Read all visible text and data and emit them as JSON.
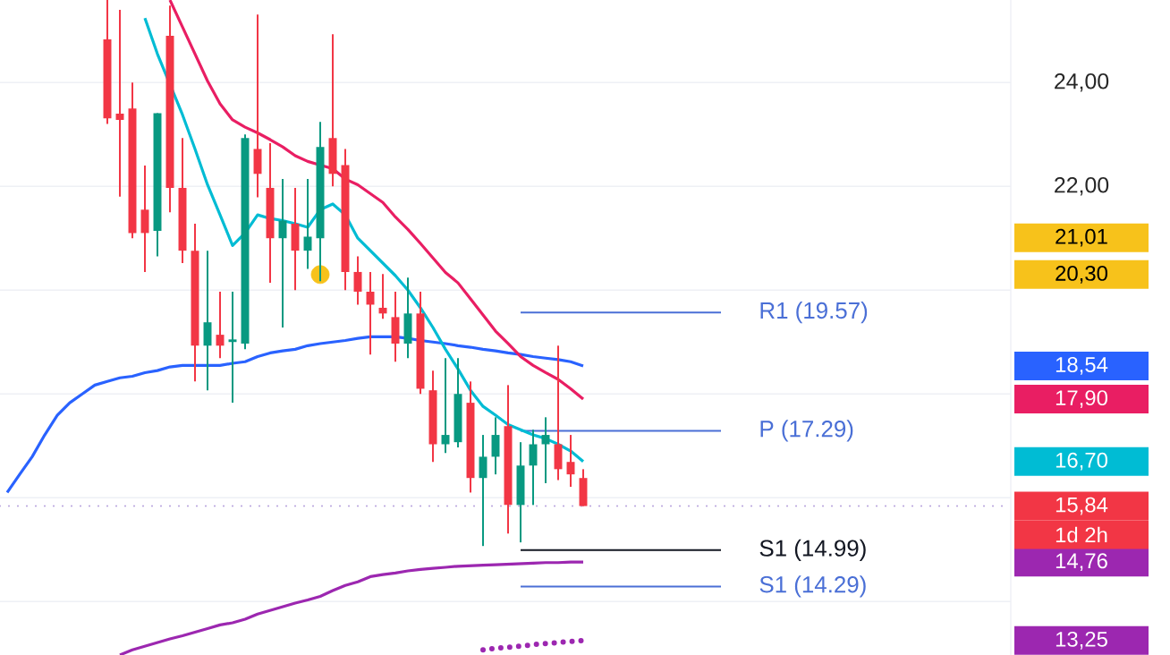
{
  "chart_data": {
    "type": "candlestick",
    "categories": [
      null,
      null,
      null,
      null,
      null,
      null,
      null,
      null,
      null,
      null,
      null,
      null,
      null,
      null,
      null,
      null,
      null,
      null,
      null,
      null,
      null,
      null,
      null,
      null,
      null,
      null,
      null,
      null,
      null,
      null,
      null,
      null,
      null,
      null,
      null,
      null,
      null,
      null,
      null,
      null,
      null,
      null,
      null,
      null,
      null,
      null,
      null,
      null
    ],
    "ohlc": [
      null,
      null,
      null,
      null,
      null,
      null,
      null,
      null,
      null,
      [
        24.83,
        25.59,
        23.2,
        23.31
      ],
      [
        23.4,
        25.4,
        21.8,
        23.28
      ],
      [
        23.5,
        24.0,
        21.0,
        21.1
      ],
      [
        21.55,
        22.4,
        20.35,
        21.1
      ],
      [
        21.14,
        23.41,
        20.65,
        23.41
      ],
      [
        24.9,
        25.48,
        21.5,
        21.97
      ],
      [
        21.97,
        22.93,
        20.52,
        20.76
      ],
      [
        20.76,
        21.28,
        18.24,
        18.93
      ],
      [
        18.93,
        20.76,
        18.07,
        19.38
      ],
      [
        19.14,
        19.97,
        18.69,
        18.93
      ],
      [
        19.0,
        19.97,
        17.83,
        19.05
      ],
      [
        18.97,
        23.0,
        18.86,
        22.93
      ],
      [
        22.72,
        25.31,
        21.79,
        22.24
      ],
      [
        21.97,
        22.83,
        20.14,
        21.0
      ],
      [
        21.0,
        22.14,
        19.28,
        21.34
      ],
      [
        21.28,
        21.97,
        20.0,
        20.76
      ],
      [
        20.76,
        22.14,
        20.41,
        21.03
      ],
      [
        21.0,
        23.24,
        20.17,
        22.76
      ],
      [
        22.93,
        24.93,
        22.0,
        22.24
      ],
      [
        22.41,
        22.72,
        20.0,
        20.35
      ],
      [
        20.35,
        20.65,
        19.72,
        19.97
      ],
      [
        19.97,
        20.35,
        18.76,
        19.72
      ],
      [
        19.66,
        20.31,
        19.45,
        19.55
      ],
      [
        19.48,
        19.97,
        18.62,
        18.97
      ],
      [
        18.97,
        20.24,
        18.69,
        19.55
      ],
      [
        19.55,
        19.97,
        18.0,
        18.1
      ],
      [
        18.07,
        18.45,
        16.69,
        17.03
      ],
      [
        17.03,
        18.69,
        16.86,
        17.21
      ],
      [
        17.07,
        18.69,
        16.97,
        18.0
      ],
      [
        17.83,
        18.24,
        16.1,
        16.38
      ],
      [
        16.38,
        17.21,
        15.07,
        16.79
      ],
      [
        16.79,
        17.55,
        16.45,
        17.21
      ],
      [
        17.38,
        18.17,
        15.31,
        15.86
      ],
      [
        15.86,
        17.07,
        15.14,
        16.62
      ],
      [
        16.62,
        17.31,
        15.86,
        17.03
      ],
      [
        17.03,
        17.55,
        16.28,
        17.21
      ],
      [
        17.03,
        18.93,
        16.34,
        16.55
      ],
      [
        16.69,
        17.21,
        16.21,
        16.45
      ],
      [
        16.38,
        16.55,
        15.84,
        15.84
      ]
    ],
    "colors": [
      null,
      null,
      null,
      null,
      null,
      null,
      null,
      null,
      null,
      "#f23645",
      "#f23645",
      "#f23645",
      "#f23645",
      "#089981",
      "#f23645",
      "#f23645",
      "#f23645",
      "#089981",
      "#f23645",
      "#089981",
      "#089981",
      "#f23645",
      "#f23645",
      "#089981",
      "#f23645",
      "#089981",
      "#089981",
      "#f23645",
      "#f23645",
      "#f23645",
      "#f23645",
      "#f23645",
      "#f23645",
      "#089981",
      "#f23645",
      "#f23645",
      "#089981",
      "#089981",
      "#f23645",
      "#089981",
      "#089981",
      "#f23645",
      "#089981",
      "#089981",
      "#089981",
      "#f23645",
      "#f23645",
      "#f23645"
    ],
    "series": [
      {
        "type": "line",
        "color": "#2962ff",
        "values": [
          null,
          16.1,
          16.45,
          16.79,
          17.21,
          17.59,
          17.83,
          18.0,
          18.17,
          18.24,
          18.31,
          18.34,
          18.41,
          18.45,
          18.52,
          18.55,
          18.55,
          18.55,
          18.55,
          18.59,
          18.62,
          18.72,
          18.79,
          18.83,
          18.86,
          18.93,
          18.97,
          19.0,
          19.03,
          19.07,
          19.1,
          19.1,
          19.1,
          19.07,
          19.03,
          19.0,
          18.97,
          18.93,
          18.9,
          18.86,
          18.83,
          18.79,
          18.76,
          18.72,
          18.69,
          18.66,
          18.62,
          18.54
        ]
      },
      {
        "type": "line",
        "color": "#e91e63",
        "values": [
          null,
          null,
          null,
          null,
          null,
          null,
          null,
          null,
          null,
          null,
          null,
          null,
          null,
          null,
          25.59,
          25.07,
          24.55,
          24.03,
          23.59,
          23.28,
          23.14,
          23.03,
          22.9,
          22.76,
          22.59,
          22.48,
          22.41,
          22.34,
          22.14,
          22.03,
          21.86,
          21.69,
          21.41,
          21.17,
          20.9,
          20.62,
          20.34,
          20.14,
          19.83,
          19.52,
          19.21,
          18.97,
          18.72,
          18.55,
          18.41,
          18.28,
          18.1,
          17.9
        ]
      },
      {
        "type": "line",
        "color": "#00bcd4",
        "values": [
          null,
          null,
          null,
          null,
          null,
          null,
          null,
          null,
          null,
          null,
          null,
          null,
          25.24,
          24.55,
          null,
          23.38,
          22.72,
          22.03,
          21.45,
          20.86,
          21.1,
          21.45,
          21.38,
          21.34,
          21.28,
          21.21,
          21.55,
          21.66,
          21.45,
          21.0,
          20.76,
          20.52,
          20.28,
          20.0,
          19.66,
          19.28,
          18.86,
          18.48,
          18.07,
          17.76,
          17.59,
          17.41,
          17.31,
          17.21,
          17.14,
          17.03,
          16.9,
          16.7
        ]
      },
      {
        "type": "line",
        "color": "#9c27b0",
        "values": [
          null,
          null,
          null,
          null,
          null,
          null,
          null,
          null,
          null,
          null,
          12.97,
          13.07,
          13.14,
          13.21,
          13.28,
          13.34,
          13.41,
          13.48,
          13.55,
          13.59,
          13.66,
          13.76,
          13.83,
          13.9,
          13.97,
          14.03,
          14.1,
          14.21,
          14.31,
          14.38,
          14.48,
          14.52,
          14.55,
          14.59,
          14.62,
          14.64,
          14.66,
          14.68,
          14.69,
          14.7,
          14.71,
          14.72,
          14.73,
          14.74,
          14.75,
          14.75,
          14.76,
          14.76
        ]
      },
      {
        "type": "line",
        "color": "#9c27b0",
        "line_style": "dotted",
        "values": [
          null,
          null,
          null,
          null,
          null,
          null,
          null,
          null,
          null,
          null,
          null,
          null,
          null,
          null,
          null,
          null,
          null,
          null,
          null,
          null,
          null,
          null,
          null,
          null,
          null,
          null,
          null,
          null,
          null,
          null,
          null,
          null,
          null,
          null,
          null,
          null,
          null,
          null,
          null,
          13.07,
          13.1,
          13.12,
          13.14,
          13.17,
          13.19,
          13.21,
          13.23,
          13.25
        ]
      },
      {
        "type": "scatter",
        "color": "#f7c21b",
        "marker": "circle",
        "values": [
          null,
          null,
          null,
          null,
          null,
          null,
          null,
          null,
          null,
          null,
          null,
          null,
          null,
          null,
          null,
          null,
          null,
          null,
          null,
          null,
          null,
          null,
          null,
          null,
          null,
          null,
          20.3,
          null,
          null,
          null,
          null,
          null,
          null,
          null,
          null,
          null,
          null,
          null,
          null,
          null,
          null,
          null,
          null,
          null,
          null,
          null,
          null,
          null
        ]
      }
    ],
    "ylim": [
      12.97,
      25.59
    ],
    "yticks": [
      {
        "value": 14,
        "label": null
      },
      {
        "value": 16,
        "label": null
      },
      {
        "value": 18,
        "label": null
      },
      {
        "value": 20,
        "label": null
      },
      {
        "value": 22,
        "label": "22,00"
      },
      {
        "value": 24,
        "label": "24,00"
      },
      {
        "value": 21.01,
        "label": "21,01"
      },
      {
        "value": 20.3,
        "label": "20,30"
      },
      {
        "value": 18.54,
        "label": "18,54"
      },
      {
        "value": 17.9,
        "label": "17,90"
      },
      {
        "value": 16.7,
        "label": "16,70"
      },
      {
        "value": 15.84,
        "label": "15,84"
      },
      {
        "value": 14.76,
        "label": "14,76"
      },
      {
        "value": 13.25,
        "label": "13,25"
      }
    ],
    "ref_lines": [
      {
        "axis": "y",
        "value": 19.57,
        "label": "R1 (19.57)",
        "color": "#4a6fd6"
      },
      {
        "axis": "y",
        "value": 17.29,
        "label": "P (17.29)",
        "color": "#4a6fd6"
      },
      {
        "axis": "y",
        "value": 14.99,
        "label": "S1 (14.99)",
        "color": "#131722"
      },
      {
        "axis": "y",
        "value": 14.29,
        "label": "S1 (14.29)",
        "color": "#4a6fd6"
      },
      {
        "axis": "y",
        "value": 15.84,
        "color": "#b39ddb",
        "line_style": "dotted"
      }
    ],
    "annotations": [
      "1d 2h"
    ],
    "grid": "y",
    "tick_labels": "y"
  }
}
